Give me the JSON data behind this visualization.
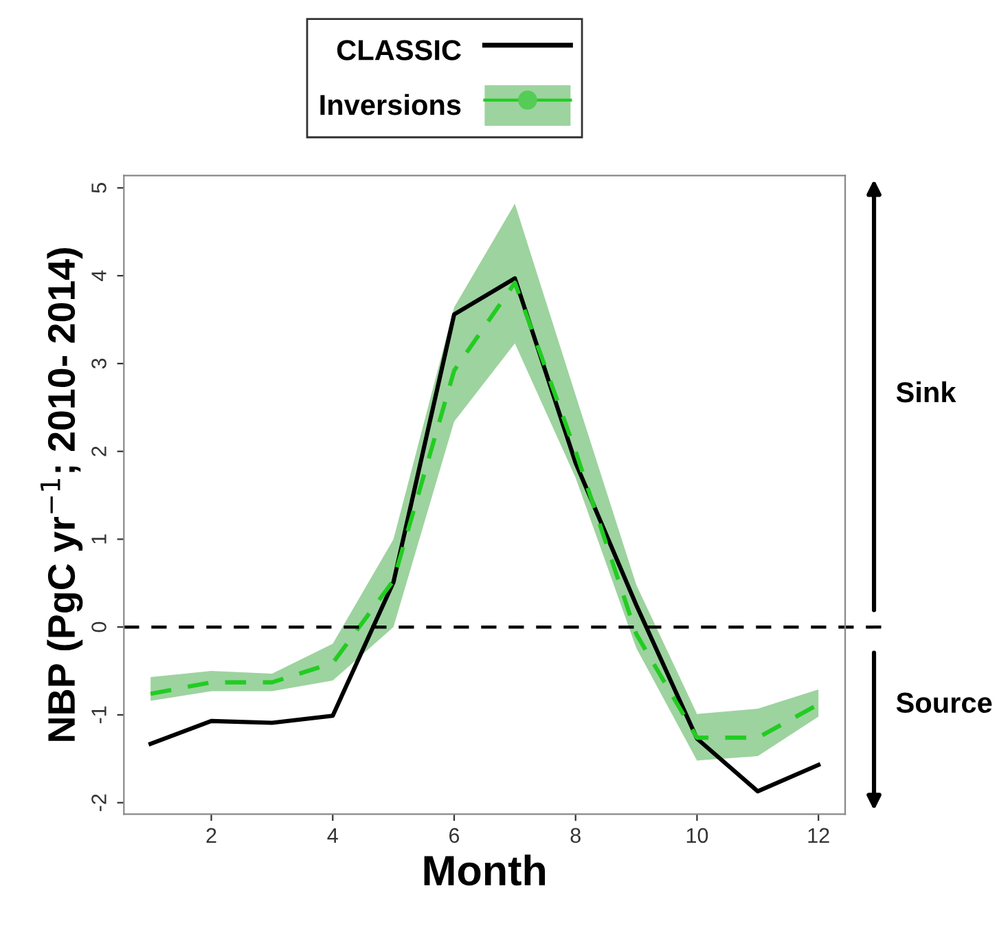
{
  "chart_data": {
    "type": "line",
    "xlabel": "Month",
    "ylabel": "NBP (PgC yr$^{−1}$; 2010- 2014)",
    "x": [
      1,
      2,
      3,
      4,
      5,
      6,
      7,
      8,
      9,
      10,
      11,
      12
    ],
    "series": [
      {
        "name": "CLASSIC",
        "color": "#000000",
        "line_style": "solid",
        "values": [
          -1.33,
          -1.07,
          -1.09,
          -1.01,
          0.51,
          3.56,
          3.97,
          1.87,
          0.25,
          -1.27,
          -1.87,
          -1.57
        ]
      },
      {
        "name": "Inversions",
        "color": "#22cc22",
        "line_style": "dashed",
        "values": [
          -0.76,
          -0.63,
          -0.63,
          -0.41,
          0.53,
          2.92,
          3.92,
          2.0,
          -0.08,
          -1.26,
          -1.26,
          -0.88
        ],
        "lower": [
          -0.84,
          -0.73,
          -0.73,
          -0.61,
          0.0,
          2.34,
          3.23,
          1.7,
          -0.24,
          -1.52,
          -1.47,
          -1.02
        ],
        "upper": [
          -0.57,
          -0.5,
          -0.53,
          -0.19,
          1.0,
          3.64,
          4.82,
          2.64,
          0.48,
          -0.99,
          -0.93,
          -0.71
        ]
      }
    ],
    "xlim": [
      0.56,
      12.44
    ],
    "xticks": [
      2,
      4,
      6,
      8,
      10,
      12
    ],
    "ylim": [
      -2.13,
      5.14
    ],
    "yticks": [
      -2,
      -1,
      0,
      1,
      2,
      3,
      4,
      5
    ],
    "ref_lines": [
      {
        "axis": "y",
        "value": 0,
        "color": "#000000",
        "line_style": "dashed"
      }
    ],
    "annotations": [
      "Sink",
      "Source"
    ],
    "legend": "top",
    "grid": false
  }
}
